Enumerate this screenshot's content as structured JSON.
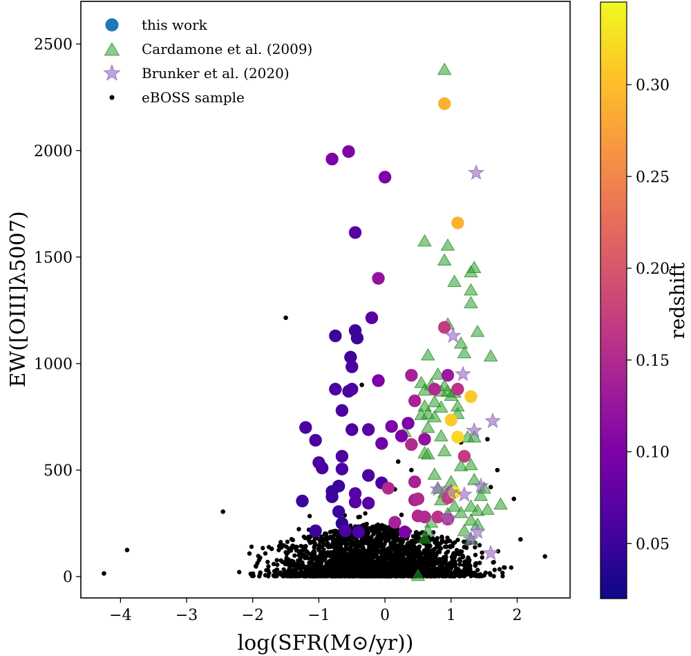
{
  "chart_data": {
    "type": "scatter",
    "title": "",
    "xlabel": "log(SFR(M⊙/yr))",
    "ylabel": "EW([OIII]λ5007)",
    "xlim": [
      -4.6,
      2.8
    ],
    "ylim": [
      -100,
      2700
    ],
    "x_ticks": [
      -4,
      -3,
      -2,
      -1,
      0,
      1,
      2
    ],
    "x_tick_labels": [
      "−4",
      "−3",
      "−2",
      "−1",
      "0",
      "1",
      "2"
    ],
    "y_ticks": [
      0,
      500,
      1000,
      1500,
      2000,
      2500
    ],
    "y_tick_labels": [
      "0",
      "500",
      "1000",
      "1500",
      "2000",
      "2500"
    ],
    "legend_position": "top-left",
    "legend": [
      {
        "label": "this work",
        "marker": "circle",
        "color": "#1f77b4"
      },
      {
        "label": "Cardamone et al. (2009)",
        "marker": "triangle",
        "color": "#2ca02c"
      },
      {
        "label": "Brunker et al. (2020)",
        "marker": "star",
        "color": "#9467bd"
      },
      {
        "label": "eBOSS sample",
        "marker": "dot",
        "color": "#000000"
      }
    ],
    "colorbar": {
      "label": "redshift",
      "range": [
        0.02,
        0.345
      ],
      "ticks": [
        0.05,
        0.1,
        0.15,
        0.2,
        0.25,
        0.3
      ],
      "tick_labels": [
        "0.05",
        "0.10",
        "0.15",
        "0.20",
        "0.25",
        "0.30"
      ],
      "colormap": "plasma"
    },
    "series": [
      {
        "name": "this work",
        "marker": "circle",
        "color_by": "redshift",
        "points": [
          [
            -0.55,
            1995,
            0.1
          ],
          [
            -0.8,
            1960,
            0.1
          ],
          [
            0.0,
            1875,
            0.1
          ],
          [
            -0.45,
            1615,
            0.07
          ],
          [
            -0.1,
            1400,
            0.12
          ],
          [
            -0.2,
            1215,
            0.07
          ],
          [
            -0.45,
            1155,
            0.05
          ],
          [
            -0.75,
            1130,
            0.05
          ],
          [
            -0.42,
            1120,
            0.05
          ],
          [
            -0.52,
            1030,
            0.05
          ],
          [
            -0.5,
            985,
            0.06
          ],
          [
            -0.1,
            920,
            0.1
          ],
          [
            -0.75,
            880,
            0.06
          ],
          [
            -0.55,
            870,
            0.06
          ],
          [
            -0.5,
            880,
            0.06
          ],
          [
            -0.65,
            780,
            0.06
          ],
          [
            -0.25,
            690,
            0.07
          ],
          [
            -0.5,
            690,
            0.06
          ],
          [
            -1.2,
            700,
            0.06
          ],
          [
            -1.05,
            640,
            0.06
          ],
          [
            0.1,
            705,
            0.1
          ],
          [
            -0.05,
            625,
            0.09
          ],
          [
            0.25,
            660,
            0.1
          ],
          [
            0.35,
            720,
            0.1
          ],
          [
            0.4,
            945,
            0.14
          ],
          [
            0.45,
            825,
            0.14
          ],
          [
            0.4,
            620,
            0.15
          ],
          [
            0.6,
            645,
            0.12
          ],
          [
            -0.65,
            565,
            0.06
          ],
          [
            -1.0,
            535,
            0.06
          ],
          [
            -0.95,
            510,
            0.06
          ],
          [
            -0.65,
            505,
            0.06
          ],
          [
            -0.25,
            475,
            0.06
          ],
          [
            -0.05,
            440,
            0.06
          ],
          [
            0.05,
            415,
            0.15
          ],
          [
            -0.7,
            425,
            0.05
          ],
          [
            -0.8,
            400,
            0.05
          ],
          [
            -0.8,
            375,
            0.05
          ],
          [
            -0.45,
            390,
            0.07
          ],
          [
            -0.45,
            350,
            0.07
          ],
          [
            -0.25,
            345,
            0.07
          ],
          [
            -1.25,
            355,
            0.05
          ],
          [
            -0.7,
            305,
            0.05
          ],
          [
            -0.65,
            250,
            0.04
          ],
          [
            -0.6,
            215,
            0.06
          ],
          [
            -1.05,
            215,
            0.05
          ],
          [
            -0.4,
            210,
            0.06
          ],
          [
            0.15,
            255,
            0.14
          ],
          [
            0.3,
            210,
            0.1
          ],
          [
            0.45,
            445,
            0.14
          ],
          [
            0.45,
            360,
            0.14
          ],
          [
            0.5,
            365,
            0.15
          ],
          [
            0.5,
            285,
            0.15
          ],
          [
            0.6,
            280,
            0.15
          ],
          [
            0.8,
            280,
            0.16
          ],
          [
            0.95,
            270,
            0.16
          ],
          [
            0.9,
            1170,
            0.17
          ],
          [
            0.95,
            945,
            0.13
          ],
          [
            0.75,
            880,
            0.15
          ],
          [
            1.1,
            880,
            0.16
          ],
          [
            1.2,
            565,
            0.17
          ],
          [
            0.95,
            370,
            0.17
          ],
          [
            1.0,
            395,
            0.17
          ],
          [
            0.9,
            2220,
            0.29
          ],
          [
            1.1,
            1660,
            0.29
          ],
          [
            1.3,
            845,
            0.31
          ],
          [
            1.0,
            735,
            0.31
          ],
          [
            1.1,
            655,
            0.32
          ],
          [
            1.05,
            395,
            0.33
          ]
        ]
      },
      {
        "name": "Cardamone et al. (2009)",
        "marker": "triangle",
        "points": [
          [
            0.9,
            2380
          ],
          [
            0.6,
            1575
          ],
          [
            0.95,
            1555
          ],
          [
            0.9,
            1485
          ],
          [
            1.35,
            1450
          ],
          [
            1.3,
            1430
          ],
          [
            1.05,
            1385
          ],
          [
            1.3,
            1345
          ],
          [
            1.3,
            1285
          ],
          [
            0.95,
            1185
          ],
          [
            1.4,
            1150
          ],
          [
            1.15,
            1095
          ],
          [
            1.2,
            1050
          ],
          [
            1.6,
            1035
          ],
          [
            0.65,
            1040
          ],
          [
            0.8,
            950
          ],
          [
            0.55,
            910
          ],
          [
            0.6,
            875
          ],
          [
            0.7,
            900
          ],
          [
            0.85,
            870
          ],
          [
            0.9,
            895
          ],
          [
            0.95,
            870
          ],
          [
            1.05,
            865
          ],
          [
            1.0,
            850
          ],
          [
            0.75,
            820
          ],
          [
            0.6,
            800
          ],
          [
            0.55,
            760
          ],
          [
            0.65,
            765
          ],
          [
            0.75,
            750
          ],
          [
            0.85,
            795
          ],
          [
            1.1,
            800
          ],
          [
            1.1,
            765
          ],
          [
            0.3,
            680
          ],
          [
            0.65,
            700
          ],
          [
            0.85,
            660
          ],
          [
            1.25,
            655
          ],
          [
            1.35,
            655
          ],
          [
            0.6,
            580
          ],
          [
            0.65,
            575
          ],
          [
            0.9,
            590
          ],
          [
            1.15,
            520
          ],
          [
            1.3,
            525
          ],
          [
            0.75,
            480
          ],
          [
            1.0,
            445
          ],
          [
            1.35,
            455
          ],
          [
            0.8,
            415
          ],
          [
            0.9,
            395
          ],
          [
            1.0,
            405
          ],
          [
            1.5,
            415
          ],
          [
            1.45,
            380
          ],
          [
            0.85,
            360
          ],
          [
            1.05,
            330
          ],
          [
            1.3,
            330
          ],
          [
            1.4,
            310
          ],
          [
            1.55,
            315
          ],
          [
            1.75,
            340
          ],
          [
            0.95,
            295
          ],
          [
            1.15,
            300
          ],
          [
            0.7,
            255
          ],
          [
            1.3,
            265
          ],
          [
            1.4,
            245
          ],
          [
            0.65,
            215
          ],
          [
            1.2,
            215
          ],
          [
            0.6,
            180
          ],
          [
            1.3,
            175
          ],
          [
            0.5,
            5
          ]
        ]
      },
      {
        "name": "Brunker et al. (2020)",
        "marker": "star",
        "points": [
          [
            1.38,
            1895
          ],
          [
            1.03,
            1130
          ],
          [
            1.18,
            950
          ],
          [
            1.63,
            730
          ],
          [
            1.35,
            685
          ],
          [
            1.45,
            425
          ],
          [
            0.8,
            410
          ],
          [
            1.0,
            395
          ],
          [
            1.2,
            385
          ],
          [
            0.95,
            275
          ],
          [
            1.4,
            210
          ],
          [
            1.3,
            175
          ],
          [
            1.6,
            110
          ]
        ]
      },
      {
        "name": "eBOSS sample",
        "marker": "dot",
        "color": "#000000",
        "outliers": [
          [
            -1.5,
            1215
          ],
          [
            -0.35,
            900
          ],
          [
            -2.45,
            305
          ],
          [
            -3.9,
            125
          ],
          [
            -4.25,
            15
          ],
          [
            2.42,
            95
          ],
          [
            2.05,
            175
          ],
          [
            1.95,
            365
          ],
          [
            1.7,
            500
          ],
          [
            1.6,
            420
          ],
          [
            1.15,
            630
          ],
          [
            1.55,
            645
          ],
          [
            -1.05,
            640
          ],
          [
            0.2,
            540
          ],
          [
            0.4,
            500
          ],
          [
            0.15,
            410
          ],
          [
            0.25,
            290
          ]
        ]
      }
    ]
  }
}
